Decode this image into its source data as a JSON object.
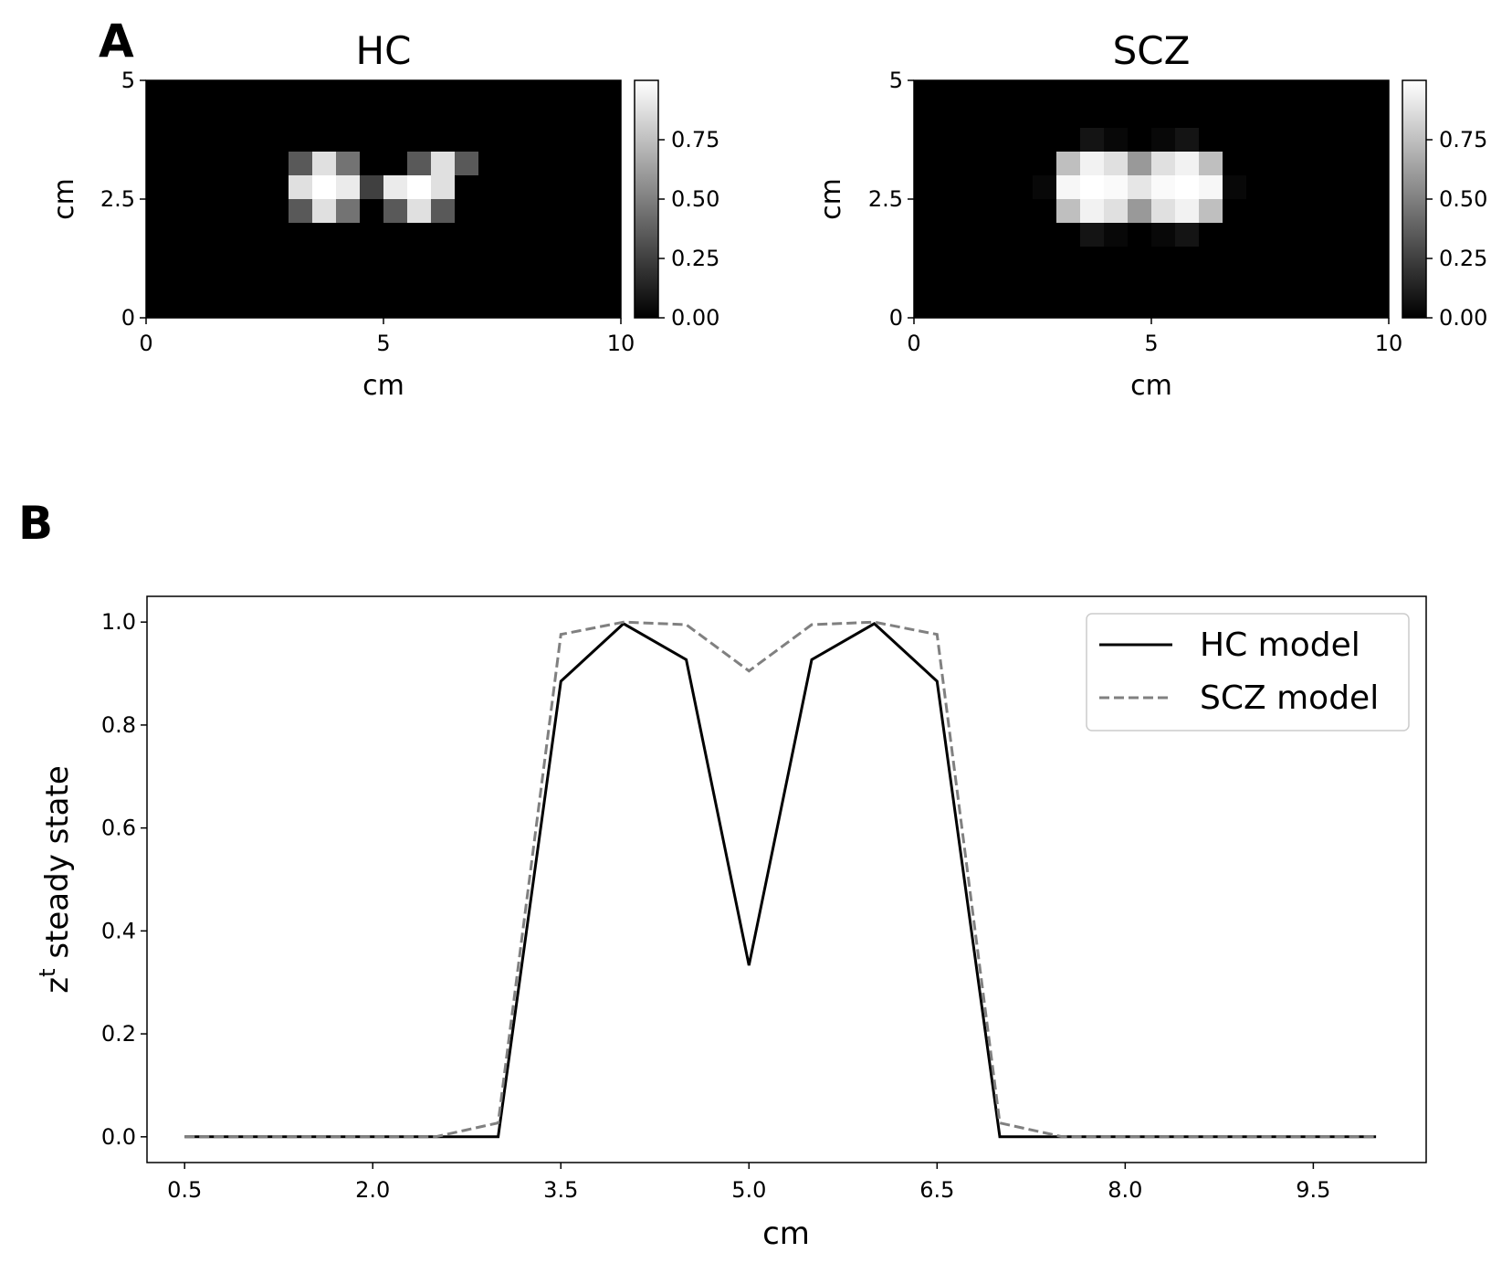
{
  "figure": {
    "panel_a_label": "A",
    "panel_b_label": "B"
  },
  "chart_data": [
    {
      "type": "heatmap",
      "title": "HC",
      "xlabel": "cm",
      "ylabel": "cm",
      "xlim": [
        0,
        10
      ],
      "ylim": [
        0,
        5
      ],
      "xticks": [
        "0",
        "5",
        "10"
      ],
      "yticks": [
        "0",
        "2.5",
        "5"
      ],
      "colormap": "gray",
      "colorbar_range": [
        0,
        1
      ],
      "colorbar_ticks": [
        "0.00",
        "0.25",
        "0.50",
        "0.75"
      ],
      "cell_size_cm": 0.5,
      "grid_note": "rows top-to-bottom from y=5 to y=0, columns left-to-right from x=0 to x=10",
      "values": [
        [
          0,
          0,
          0,
          0,
          0,
          0,
          0,
          0,
          0,
          0,
          0,
          0,
          0,
          0,
          0,
          0,
          0,
          0,
          0,
          0
        ],
        [
          0,
          0,
          0,
          0,
          0,
          0,
          0,
          0,
          0,
          0,
          0,
          0,
          0,
          0,
          0,
          0,
          0,
          0,
          0,
          0
        ],
        [
          0,
          0,
          0,
          0,
          0,
          0,
          0,
          0,
          0,
          0,
          0,
          0,
          0,
          0,
          0,
          0,
          0,
          0,
          0,
          0
        ],
        [
          0,
          0,
          0,
          0,
          0,
          0,
          0.35,
          0.88,
          0.45,
          0,
          0,
          0.35,
          0.88,
          0.35,
          0,
          0,
          0,
          0,
          0,
          0
        ],
        [
          0,
          0,
          0,
          0,
          0,
          0,
          0.88,
          1.0,
          0.92,
          0.25,
          0.92,
          1.0,
          0.88,
          0,
          0,
          0,
          0,
          0,
          0,
          0
        ],
        [
          0,
          0,
          0,
          0,
          0,
          0,
          0.35,
          0.88,
          0.45,
          0,
          0.35,
          0.88,
          0.35,
          0,
          0,
          0,
          0,
          0,
          0,
          0
        ],
        [
          0,
          0,
          0,
          0,
          0,
          0,
          0,
          0,
          0,
          0,
          0,
          0,
          0,
          0,
          0,
          0,
          0,
          0,
          0,
          0
        ],
        [
          0,
          0,
          0,
          0,
          0,
          0,
          0,
          0,
          0,
          0,
          0,
          0,
          0,
          0,
          0,
          0,
          0,
          0,
          0,
          0
        ],
        [
          0,
          0,
          0,
          0,
          0,
          0,
          0,
          0,
          0,
          0,
          0,
          0,
          0,
          0,
          0,
          0,
          0,
          0,
          0,
          0
        ],
        [
          0,
          0,
          0,
          0,
          0,
          0,
          0,
          0,
          0,
          0,
          0,
          0,
          0,
          0,
          0,
          0,
          0,
          0,
          0,
          0
        ]
      ]
    },
    {
      "type": "heatmap",
      "title": "SCZ",
      "xlabel": "cm",
      "ylabel": "cm",
      "xlim": [
        0,
        10
      ],
      "ylim": [
        0,
        5
      ],
      "xticks": [
        "0",
        "5",
        "10"
      ],
      "yticks": [
        "0",
        "2.5",
        "5"
      ],
      "colormap": "gray",
      "colorbar_range": [
        0,
        1
      ],
      "colorbar_ticks": [
        "0.00",
        "0.25",
        "0.50",
        "0.75"
      ],
      "cell_size_cm": 0.5,
      "grid_note": "rows top-to-bottom from y=5 to y=0, columns left-to-right from x=0 to x=10",
      "values": [
        [
          0,
          0,
          0,
          0,
          0,
          0,
          0,
          0,
          0,
          0,
          0,
          0,
          0,
          0,
          0,
          0,
          0,
          0,
          0,
          0
        ],
        [
          0,
          0,
          0,
          0,
          0,
          0,
          0,
          0,
          0,
          0,
          0,
          0,
          0,
          0,
          0,
          0,
          0,
          0,
          0,
          0
        ],
        [
          0,
          0,
          0,
          0,
          0,
          0,
          0,
          0.08,
          0.03,
          0,
          0.03,
          0.08,
          0,
          0,
          0,
          0,
          0,
          0,
          0,
          0
        ],
        [
          0,
          0,
          0,
          0,
          0,
          0,
          0.75,
          0.95,
          0.88,
          0.6,
          0.88,
          0.95,
          0.75,
          0,
          0,
          0,
          0,
          0,
          0,
          0
        ],
        [
          0,
          0,
          0,
          0,
          0,
          0.03,
          0.97,
          1.0,
          0.98,
          0.9,
          0.98,
          1.0,
          0.97,
          0.03,
          0,
          0,
          0,
          0,
          0,
          0
        ],
        [
          0,
          0,
          0,
          0,
          0,
          0,
          0.75,
          0.95,
          0.88,
          0.6,
          0.88,
          0.95,
          0.75,
          0,
          0,
          0,
          0,
          0,
          0,
          0
        ],
        [
          0,
          0,
          0,
          0,
          0,
          0,
          0,
          0.08,
          0.03,
          0,
          0.03,
          0.08,
          0,
          0,
          0,
          0,
          0,
          0,
          0,
          0
        ],
        [
          0,
          0,
          0,
          0,
          0,
          0,
          0,
          0,
          0,
          0,
          0,
          0,
          0,
          0,
          0,
          0,
          0,
          0,
          0,
          0
        ],
        [
          0,
          0,
          0,
          0,
          0,
          0,
          0,
          0,
          0,
          0,
          0,
          0,
          0,
          0,
          0,
          0,
          0,
          0,
          0,
          0
        ],
        [
          0,
          0,
          0,
          0,
          0,
          0,
          0,
          0,
          0,
          0,
          0,
          0,
          0,
          0,
          0,
          0,
          0,
          0,
          0,
          0
        ]
      ]
    },
    {
      "type": "line",
      "xlabel": "cm",
      "ylabel_base": "z",
      "ylabel_sup": "t",
      "ylabel_rest": " steady state",
      "xlim": [
        0.2,
        10.4
      ],
      "ylim": [
        -0.05,
        1.05
      ],
      "xticks": [
        0.5,
        2.0,
        3.5,
        5.0,
        6.5,
        8.0,
        9.5
      ],
      "xtick_labels": [
        "0.5",
        "2.0",
        "3.5",
        "5.0",
        "6.5",
        "8.0",
        "9.5"
      ],
      "yticks": [
        0.0,
        0.2,
        0.4,
        0.6,
        0.8,
        1.0
      ],
      "ytick_labels": [
        "0.0",
        "0.2",
        "0.4",
        "0.6",
        "0.8",
        "1.0"
      ],
      "legend_position": "top-right",
      "x": [
        0.5,
        1.0,
        1.5,
        2.0,
        2.5,
        3.0,
        3.5,
        4.0,
        4.5,
        5.0,
        5.5,
        6.0,
        6.5,
        7.0,
        7.5,
        8.0,
        8.5,
        9.0,
        9.5,
        10.0
      ],
      "series": [
        {
          "name": "HC model",
          "color": "#000000",
          "dash": "solid",
          "values": [
            0,
            0,
            0,
            0,
            0,
            0,
            0.885,
            0.997,
            0.927,
            0.333,
            0.927,
            0.997,
            0.885,
            0,
            0,
            0,
            0,
            0,
            0,
            0
          ]
        },
        {
          "name": "SCZ model",
          "color": "#808080",
          "dash": "dashed",
          "values": [
            0,
            0,
            0,
            0,
            0,
            0.027,
            0.976,
            1.0,
            0.995,
            0.905,
            0.995,
            1.0,
            0.976,
            0.027,
            0,
            0,
            0,
            0,
            0,
            0
          ]
        }
      ]
    }
  ]
}
